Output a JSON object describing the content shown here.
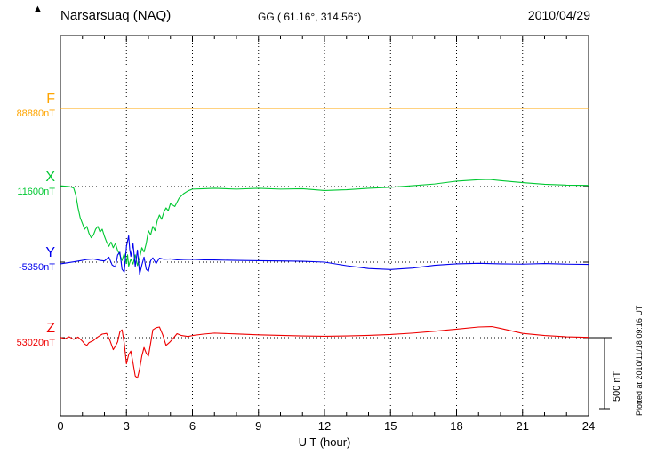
{
  "header": {
    "station": "Narsarsuaq (NAQ)",
    "gg_coords": "GG ( 61.16°, 314.56°)",
    "date": "2010/04/29",
    "plotted_at": "Plotted at 2010/11/18 09:16 UT"
  },
  "chart_data": {
    "type": "line",
    "title": "Narsarsuaq (NAQ) magnetogram",
    "station": "Narsarsuaq (NAQ)",
    "coordinates": "GG ( 61.16°, 314.56°)",
    "date": "2010/04/29",
    "xlabel": "U T (hour)",
    "x_range": [
      0,
      24
    ],
    "x_ticks": [
      0,
      3,
      6,
      9,
      12,
      15,
      18,
      21,
      24
    ],
    "grid": "dotted vertical every 3 h, dotted horizontal baselines",
    "scale_bar_label": "500 nT",
    "scale_bar_nT": 500,
    "offset_unit": "nT",
    "series": [
      {
        "name": "F",
        "color": "#ffa500",
        "baseline_label": "88880nT",
        "baseline_nT": 88880,
        "points": [
          [
            0,
            0
          ],
          [
            24,
            0
          ]
        ]
      },
      {
        "name": "X",
        "color": "#00c832",
        "baseline_label": "11600nT",
        "baseline_nT": 11600,
        "points": [
          [
            0,
            5
          ],
          [
            0.2,
            3
          ],
          [
            0.4,
            0
          ],
          [
            0.6,
            -10
          ],
          [
            0.7,
            -60
          ],
          [
            0.8,
            -150
          ],
          [
            0.9,
            -220
          ],
          [
            1,
            -260
          ],
          [
            1.1,
            -300
          ],
          [
            1.2,
            -280
          ],
          [
            1.3,
            -330
          ],
          [
            1.4,
            -360
          ],
          [
            1.5,
            -340
          ],
          [
            1.6,
            -300
          ],
          [
            1.7,
            -280
          ],
          [
            1.8,
            -320
          ],
          [
            1.9,
            -300
          ],
          [
            2,
            -350
          ],
          [
            2.1,
            -390
          ],
          [
            2.2,
            -420
          ],
          [
            2.3,
            -390
          ],
          [
            2.4,
            -430
          ],
          [
            2.5,
            -400
          ],
          [
            2.6,
            -450
          ],
          [
            2.7,
            -480
          ],
          [
            2.8,
            -520
          ],
          [
            2.9,
            -470
          ],
          [
            3,
            -540
          ],
          [
            3.05,
            -480
          ],
          [
            3.1,
            -560
          ],
          [
            3.2,
            -510
          ],
          [
            3.3,
            -545
          ],
          [
            3.4,
            -480
          ],
          [
            3.5,
            -555
          ],
          [
            3.6,
            -500
          ],
          [
            3.7,
            -430
          ],
          [
            3.8,
            -460
          ],
          [
            3.9,
            -400
          ],
          [
            4,
            -310
          ],
          [
            4.1,
            -340
          ],
          [
            4.2,
            -280
          ],
          [
            4.3,
            -310
          ],
          [
            4.4,
            -240
          ],
          [
            4.5,
            -200
          ],
          [
            4.6,
            -230
          ],
          [
            4.7,
            -180
          ],
          [
            4.8,
            -150
          ],
          [
            4.9,
            -170
          ],
          [
            5,
            -120
          ],
          [
            5.2,
            -140
          ],
          [
            5.4,
            -80
          ],
          [
            5.6,
            -50
          ],
          [
            5.8,
            -30
          ],
          [
            6,
            -18
          ],
          [
            6.5,
            -15
          ],
          [
            7,
            -12
          ],
          [
            8,
            -18
          ],
          [
            9,
            -12
          ],
          [
            10,
            -18
          ],
          [
            11,
            -15
          ],
          [
            12,
            -28
          ],
          [
            13,
            -22
          ],
          [
            14,
            -12
          ],
          [
            15,
            -5
          ],
          [
            16,
            6
          ],
          [
            17,
            18
          ],
          [
            18,
            38
          ],
          [
            19,
            48
          ],
          [
            19.5,
            50
          ],
          [
            20,
            42
          ],
          [
            21,
            28
          ],
          [
            22,
            16
          ],
          [
            23,
            10
          ],
          [
            24,
            8
          ]
        ]
      },
      {
        "name": "Y",
        "color": "#0000ee",
        "baseline_label": "-5350nT",
        "baseline_nT": -5350,
        "points": [
          [
            0,
            -12
          ],
          [
            0.3,
            -5
          ],
          [
            0.6,
            2
          ],
          [
            0.9,
            10
          ],
          [
            1.2,
            18
          ],
          [
            1.5,
            22
          ],
          [
            1.8,
            12
          ],
          [
            2,
            8
          ],
          [
            2.2,
            35
          ],
          [
            2.35,
            -20
          ],
          [
            2.5,
            -35
          ],
          [
            2.6,
            50
          ],
          [
            2.7,
            70
          ],
          [
            2.8,
            -50
          ],
          [
            2.9,
            -70
          ],
          [
            3,
            110
          ],
          [
            3.1,
            185
          ],
          [
            3.15,
            90
          ],
          [
            3.2,
            40
          ],
          [
            3.3,
            130
          ],
          [
            3.4,
            -30
          ],
          [
            3.5,
            85
          ],
          [
            3.6,
            -85
          ],
          [
            3.7,
            -20
          ],
          [
            3.8,
            35
          ],
          [
            3.9,
            -50
          ],
          [
            4,
            -65
          ],
          [
            4.1,
            10
          ],
          [
            4.2,
            30
          ],
          [
            4.35,
            -10
          ],
          [
            4.5,
            28
          ],
          [
            4.7,
            20
          ],
          [
            5,
            22
          ],
          [
            5.3,
            16
          ],
          [
            5.6,
            18
          ],
          [
            6,
            20
          ],
          [
            6.5,
            16
          ],
          [
            7,
            15
          ],
          [
            8,
            12
          ],
          [
            9,
            10
          ],
          [
            10,
            8
          ],
          [
            11,
            6
          ],
          [
            12,
            0
          ],
          [
            13,
            -25
          ],
          [
            14,
            -45
          ],
          [
            15,
            -52
          ],
          [
            16,
            -42
          ],
          [
            17,
            -22
          ],
          [
            18,
            -12
          ],
          [
            19,
            -8
          ],
          [
            20,
            -12
          ],
          [
            21,
            -14
          ],
          [
            22,
            -10
          ],
          [
            23,
            -14
          ],
          [
            24,
            -16
          ]
        ]
      },
      {
        "name": "Z",
        "color": "#ee0000",
        "baseline_label": "53020nT",
        "baseline_nT": 53020,
        "points": [
          [
            0,
            2
          ],
          [
            0.2,
            -8
          ],
          [
            0.4,
            6
          ],
          [
            0.6,
            -12
          ],
          [
            0.8,
            4
          ],
          [
            1,
            -25
          ],
          [
            1.1,
            -45
          ],
          [
            1.2,
            -55
          ],
          [
            1.3,
            -35
          ],
          [
            1.5,
            -20
          ],
          [
            1.7,
            5
          ],
          [
            1.9,
            25
          ],
          [
            2.1,
            30
          ],
          [
            2.25,
            -20
          ],
          [
            2.4,
            -85
          ],
          [
            2.5,
            -60
          ],
          [
            2.6,
            -30
          ],
          [
            2.7,
            40
          ],
          [
            2.8,
            55
          ],
          [
            2.9,
            -40
          ],
          [
            3,
            -185
          ],
          [
            3.1,
            -120
          ],
          [
            3.2,
            -95
          ],
          [
            3.3,
            -180
          ],
          [
            3.4,
            -270
          ],
          [
            3.5,
            -285
          ],
          [
            3.6,
            -220
          ],
          [
            3.7,
            -130
          ],
          [
            3.8,
            -70
          ],
          [
            3.9,
            -110
          ],
          [
            4,
            -130
          ],
          [
            4.1,
            -40
          ],
          [
            4.2,
            55
          ],
          [
            4.35,
            70
          ],
          [
            4.5,
            75
          ],
          [
            4.65,
            20
          ],
          [
            4.8,
            -55
          ],
          [
            4.95,
            -35
          ],
          [
            5.1,
            -10
          ],
          [
            5.3,
            28
          ],
          [
            5.5,
            15
          ],
          [
            5.8,
            8
          ],
          [
            6,
            15
          ],
          [
            6.5,
            25
          ],
          [
            7,
            32
          ],
          [
            8,
            26
          ],
          [
            9,
            20
          ],
          [
            10,
            16
          ],
          [
            11,
            12
          ],
          [
            12,
            10
          ],
          [
            13,
            12
          ],
          [
            14,
            16
          ],
          [
            15,
            22
          ],
          [
            16,
            32
          ],
          [
            17,
            45
          ],
          [
            18,
            60
          ],
          [
            19,
            75
          ],
          [
            19.6,
            78
          ],
          [
            20,
            65
          ],
          [
            21,
            30
          ],
          [
            22,
            15
          ],
          [
            23,
            6
          ],
          [
            24,
            2
          ]
        ]
      }
    ]
  }
}
